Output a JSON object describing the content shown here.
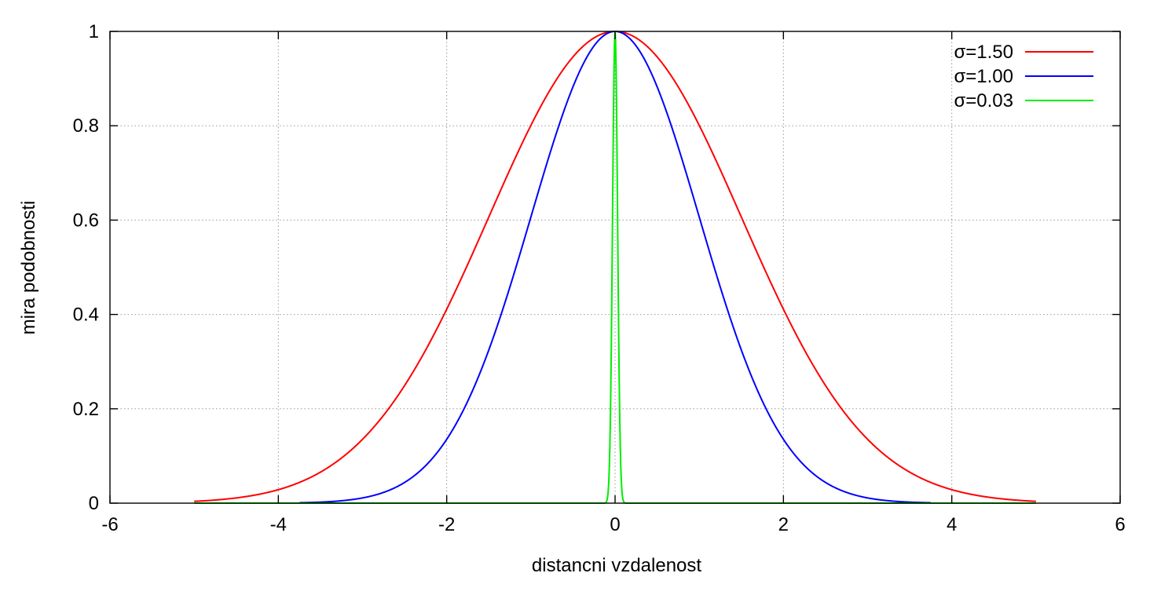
{
  "chart_data": {
    "type": "line",
    "title": "",
    "xlabel": "distancni vzdalenost",
    "ylabel": "mira podobnosti",
    "xlim": [
      -6,
      6
    ],
    "ylim": [
      0,
      1
    ],
    "xticks": [
      -6,
      -4,
      -2,
      0,
      2,
      4,
      6
    ],
    "xtick_labels": [
      "-6",
      "-4",
      "-2",
      "0",
      "2",
      "4",
      "6"
    ],
    "yticks": [
      0,
      0.2,
      0.4,
      0.6,
      0.8,
      1
    ],
    "ytick_labels": [
      "0",
      "0.2",
      "0.4",
      "0.6",
      "0.8",
      "1"
    ],
    "grid": true,
    "legend_position": "top-right",
    "series": [
      {
        "name": "σ=1.50",
        "color": "#ff0000",
        "sigma": 1.5,
        "x_range": [
          -5,
          5
        ],
        "x": [
          -5,
          -4.5,
          -4,
          -3.5,
          -3,
          -2.5,
          -2,
          -1.5,
          -1,
          -0.5,
          0,
          0.5,
          1,
          1.5,
          2,
          2.5,
          3,
          3.5,
          4,
          4.5,
          5
        ],
        "y": [
          0.004,
          0.011,
          0.029,
          0.066,
          0.135,
          0.249,
          0.411,
          0.607,
          0.801,
          0.946,
          1,
          0.946,
          0.801,
          0.607,
          0.411,
          0.249,
          0.135,
          0.066,
          0.029,
          0.011,
          0.004
        ]
      },
      {
        "name": "σ=1.00",
        "color": "#0000ff",
        "sigma": 1.0,
        "x_range": [
          -3.75,
          3.75
        ],
        "x": [
          -3.75,
          -3.5,
          -3,
          -2.5,
          -2,
          -1.5,
          -1,
          -0.5,
          0,
          0.5,
          1,
          1.5,
          2,
          2.5,
          3,
          3.5,
          3.75
        ],
        "y": [
          0.001,
          0.002,
          0.011,
          0.044,
          0.135,
          0.325,
          0.607,
          0.882,
          1,
          0.882,
          0.607,
          0.325,
          0.135,
          0.044,
          0.011,
          0.002,
          0.001
        ]
      },
      {
        "name": "σ=0.03",
        "color": "#00ee00",
        "sigma": 0.03,
        "x_range": [
          -5,
          5
        ],
        "x": [
          -5,
          -0.1,
          -0.06,
          -0.03,
          0,
          0.03,
          0.06,
          0.1,
          5
        ],
        "y": [
          0,
          0.004,
          0.135,
          0.607,
          1,
          0.607,
          0.135,
          0.004,
          0
        ]
      }
    ]
  }
}
